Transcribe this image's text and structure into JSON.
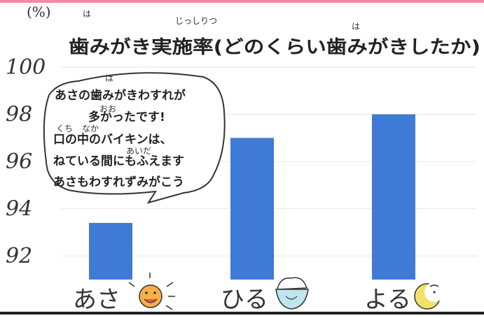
{
  "chart_data": {
    "type": "bar",
    "title": "歯みがき実施率(どのくらい歯みがきしたか)",
    "title_ruby": {
      "ha": "は",
      "jisshiritsu": "じっしりつ",
      "ha2": "は"
    },
    "ylabel": "(%)",
    "ylim": [
      91,
      100
    ],
    "yticks": [
      "92",
      "94",
      "96",
      "98",
      "100"
    ],
    "yticks_values": [
      92,
      94,
      96,
      98,
      100
    ],
    "categories": [
      "あさ",
      "ひる",
      "よる"
    ],
    "values": [
      93.4,
      97.0,
      98.0
    ],
    "colors": {
      "bar": "#3f7bd6",
      "grid": "#e6e6e6",
      "top_border": "#f08aa6"
    },
    "grid": true,
    "icons": [
      "sun-face-icon",
      "rice-bowl-icon",
      "crescent-moon-icon"
    ]
  },
  "bubble": {
    "lines": [
      "あさの歯みがきわすれが",
      "多かったです!",
      "口の中のバイキンは、",
      "ねている間にもふえます",
      "あさもわすれずみがこう"
    ],
    "ruby_ha": "は",
    "ruby_oo": "おお",
    "ruby_kuchi": "くち",
    "ruby_naka": "なか",
    "ruby_aida": "あいだ"
  }
}
